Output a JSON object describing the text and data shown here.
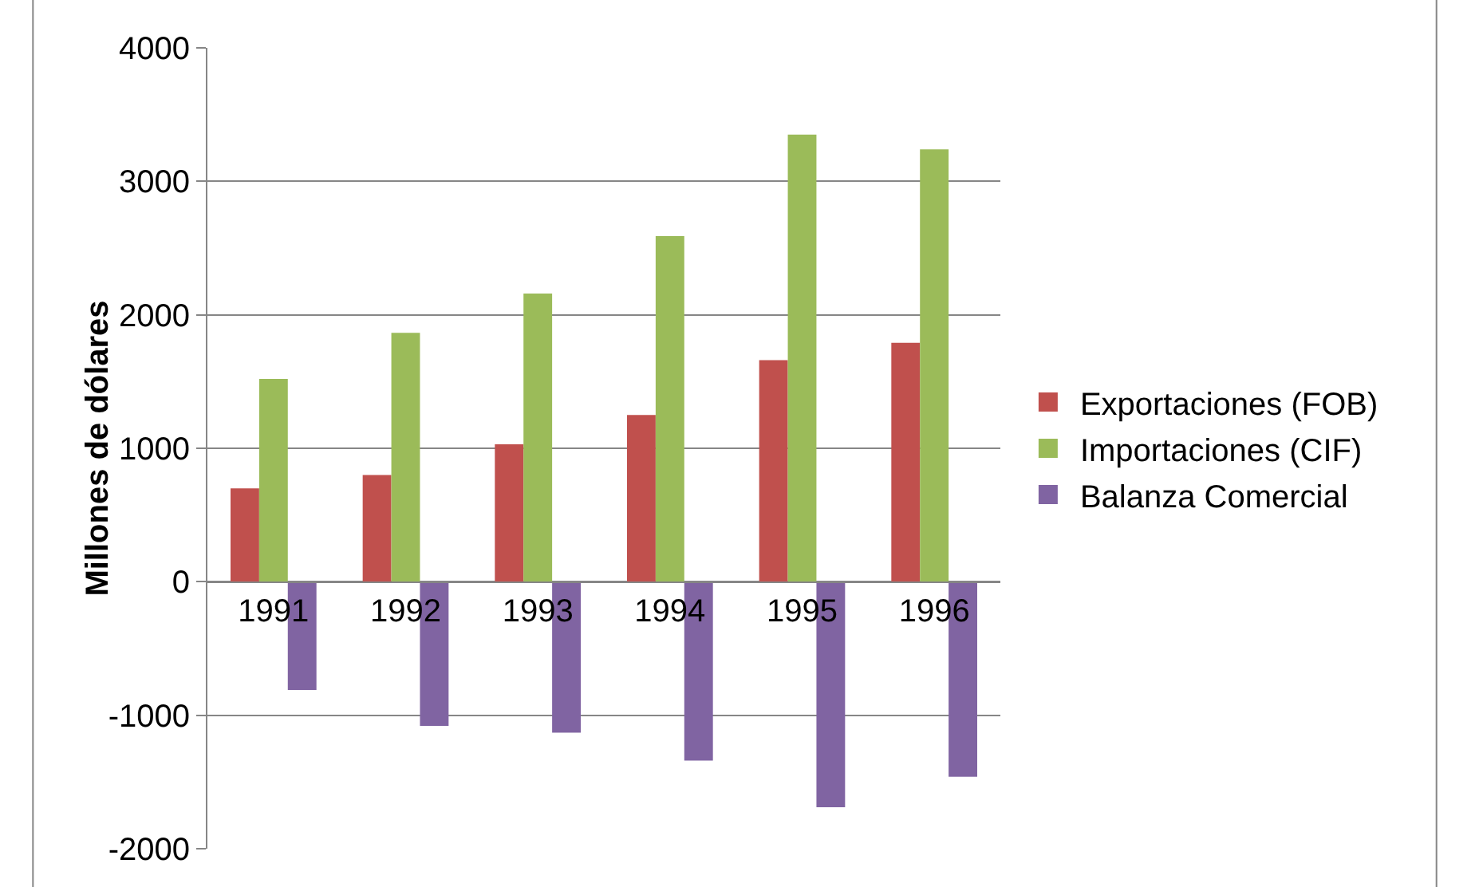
{
  "chart_data": {
    "type": "bar",
    "ylabel": "Millones de dólares",
    "categories": [
      "1991",
      "1992",
      "1993",
      "1994",
      "1995",
      "1996"
    ],
    "series": [
      {
        "name": "Exportaciones (FOB)",
        "color": "#c0504d",
        "values": [
          700,
          800,
          1030,
          1250,
          1660,
          1790
        ]
      },
      {
        "name": "Importaciones (CIF)",
        "color": "#9bbb59",
        "values": [
          1520,
          1865,
          2160,
          2590,
          3350,
          3240
        ]
      },
      {
        "name": "Balanza Comercial",
        "color": "#8064a2",
        "values": [
          -810,
          -1080,
          -1130,
          -1340,
          -1690,
          -1460
        ]
      }
    ],
    "ylim": [
      -2000,
      4000
    ],
    "yticks": [
      -2000,
      -1000,
      0,
      1000,
      2000,
      3000,
      4000
    ],
    "grid": "y",
    "legend": "right"
  }
}
